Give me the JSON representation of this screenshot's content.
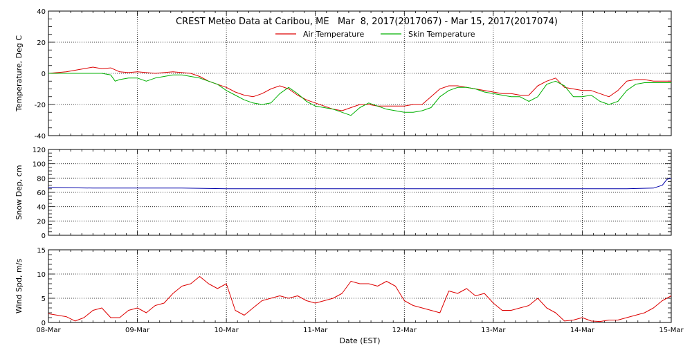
{
  "chart_data": [
    {
      "type": "line",
      "title": "CREST Meteo Data at Caribou, ME   Mar  8, 2017(2017067) - Mar 15, 2017(2017074)",
      "xlabel": "",
      "ylabel": "Temperature, Deg C",
      "xlim": [
        0,
        7
      ],
      "ylim": [
        -40,
        40
      ],
      "yticks": [
        -40,
        -20,
        0,
        20,
        40
      ],
      "grid": true,
      "legend": "top-center",
      "series": [
        {
          "name": "Air Temperature",
          "color": "#dd0000",
          "x": [
            0,
            0.1,
            0.2,
            0.3,
            0.4,
            0.5,
            0.55,
            0.6,
            0.7,
            0.8,
            0.9,
            1.0,
            1.1,
            1.2,
            1.3,
            1.4,
            1.5,
            1.6,
            1.7,
            1.8,
            1.9,
            2.0,
            2.1,
            2.2,
            2.3,
            2.4,
            2.5,
            2.6,
            2.7,
            2.8,
            2.9,
            3.0,
            3.1,
            3.2,
            3.3,
            3.4,
            3.5,
            3.6,
            3.7,
            3.8,
            3.9,
            4.0,
            4.1,
            4.2,
            4.3,
            4.4,
            4.5,
            4.6,
            4.7,
            4.8,
            4.9,
            5.0,
            5.1,
            5.2,
            5.3,
            5.4,
            5.5,
            5.6,
            5.7,
            5.8,
            5.9,
            6.0,
            6.1,
            6.2,
            6.3,
            6.4,
            6.5,
            6.6,
            6.7,
            6.8,
            6.9,
            7.0
          ],
          "y": [
            0,
            0.5,
            1,
            2,
            3,
            4,
            3.5,
            3,
            3.5,
            1,
            0.5,
            1,
            0.5,
            0,
            0.5,
            1,
            0.5,
            0,
            -2,
            -5,
            -7,
            -9,
            -12,
            -14,
            -15,
            -13,
            -10,
            -8,
            -10,
            -14,
            -17,
            -19,
            -21,
            -23,
            -24,
            -22,
            -20,
            -20,
            -21,
            -21,
            -21,
            -21,
            -20,
            -20,
            -15,
            -10,
            -8,
            -8,
            -9,
            -10,
            -11,
            -12,
            -13,
            -13,
            -14,
            -14,
            -8,
            -5,
            -3,
            -9,
            -10,
            -11,
            -11,
            -13,
            -15,
            -11,
            -5,
            -4,
            -4,
            -5,
            -5,
            -5
          ]
        },
        {
          "name": "Skin Temperature",
          "color": "#00b000",
          "x": [
            0,
            0.2,
            0.4,
            0.6,
            0.7,
            0.75,
            0.8,
            0.9,
            1.0,
            1.1,
            1.2,
            1.3,
            1.4,
            1.5,
            1.6,
            1.7,
            1.8,
            1.9,
            2.0,
            2.1,
            2.2,
            2.3,
            2.4,
            2.5,
            2.6,
            2.7,
            2.8,
            2.9,
            3.0,
            3.1,
            3.2,
            3.3,
            3.4,
            3.5,
            3.6,
            3.7,
            3.8,
            3.9,
            4.0,
            4.1,
            4.2,
            4.3,
            4.4,
            4.5,
            4.6,
            4.7,
            4.8,
            4.9,
            5.0,
            5.1,
            5.2,
            5.3,
            5.4,
            5.5,
            5.6,
            5.7,
            5.8,
            5.9,
            6.0,
            6.1,
            6.2,
            6.3,
            6.4,
            6.5,
            6.6,
            6.7,
            6.8,
            6.9,
            7.0
          ],
          "y": [
            0,
            0,
            0,
            0,
            -1,
            -5,
            -4,
            -3,
            -3,
            -5,
            -3,
            -2,
            -1,
            -1,
            -2,
            -3,
            -5,
            -7,
            -11,
            -14,
            -17,
            -19,
            -20,
            -19,
            -13,
            -9,
            -13,
            -18,
            -21,
            -22,
            -23,
            -25,
            -27,
            -22,
            -19,
            -21,
            -23,
            -24,
            -25,
            -25,
            -24,
            -22,
            -15,
            -11,
            -9,
            -9,
            -10,
            -12,
            -13,
            -14,
            -15,
            -15,
            -18,
            -15,
            -7,
            -5,
            -8,
            -15,
            -15,
            -14,
            -18,
            -20,
            -18,
            -11,
            -7,
            -6,
            -6,
            -6,
            -6
          ]
        }
      ]
    },
    {
      "type": "line",
      "xlabel": "",
      "ylabel": "Snow Dep, cm",
      "xlim": [
        0,
        7
      ],
      "ylim": [
        0,
        120
      ],
      "yticks": [
        0,
        20,
        40,
        60,
        80,
        100,
        120
      ],
      "grid": true,
      "series": [
        {
          "color": "#0000aa",
          "x": [
            0,
            0.5,
            1,
            1.5,
            2,
            2.5,
            3,
            3.5,
            4,
            4.5,
            5,
            5.5,
            6,
            6.5,
            6.8,
            6.9,
            6.95,
            7.0
          ],
          "y": [
            67,
            66,
            66,
            66,
            65,
            65,
            65,
            65,
            65,
            65,
            65,
            65,
            65,
            65,
            66,
            70,
            78,
            80
          ]
        }
      ]
    },
    {
      "type": "line",
      "xlabel": "Date (EST)",
      "ylabel": "Wind Spd, m/s",
      "xlim": [
        0,
        7
      ],
      "ylim": [
        0,
        15
      ],
      "yticks": [
        0,
        5,
        10,
        15
      ],
      "xtick_positions": [
        0,
        1,
        2,
        3,
        4,
        5,
        6,
        7
      ],
      "xticks": [
        "08-Mar",
        "09-Mar",
        "10-Mar",
        "11-Mar",
        "12-Mar",
        "13-Mar",
        "14-Mar",
        "15-Mar"
      ],
      "grid": true,
      "series": [
        {
          "color": "#dd0000",
          "x": [
            0,
            0.1,
            0.2,
            0.3,
            0.4,
            0.5,
            0.6,
            0.7,
            0.8,
            0.9,
            1.0,
            1.1,
            1.2,
            1.3,
            1.4,
            1.5,
            1.6,
            1.7,
            1.8,
            1.9,
            2.0,
            2.1,
            2.2,
            2.3,
            2.4,
            2.5,
            2.6,
            2.7,
            2.8,
            2.9,
            3.0,
            3.1,
            3.2,
            3.3,
            3.4,
            3.5,
            3.6,
            3.7,
            3.8,
            3.9,
            4.0,
            4.1,
            4.2,
            4.3,
            4.4,
            4.5,
            4.6,
            4.7,
            4.8,
            4.9,
            5.0,
            5.1,
            5.2,
            5.3,
            5.4,
            5.5,
            5.6,
            5.7,
            5.8,
            5.9,
            6.0,
            6.1,
            6.2,
            6.3,
            6.4,
            6.5,
            6.6,
            6.7,
            6.8,
            6.9,
            7.0
          ],
          "y": [
            1.8,
            1.5,
            1.2,
            0.3,
            1.0,
            2.5,
            3.0,
            1.0,
            1.0,
            2.5,
            3.0,
            2.0,
            3.5,
            4.0,
            6.0,
            7.5,
            8.0,
            9.5,
            8.0,
            7.0,
            8.0,
            2.5,
            1.5,
            3.0,
            4.5,
            5.0,
            5.5,
            5.0,
            5.5,
            4.5,
            4.0,
            4.5,
            5.0,
            6.0,
            8.5,
            8.0,
            8.0,
            7.5,
            8.5,
            7.5,
            4.5,
            3.5,
            3.0,
            2.5,
            2.0,
            6.5,
            6.0,
            7.0,
            5.5,
            6.0,
            4.0,
            2.5,
            2.5,
            3.0,
            3.5,
            5.0,
            3.0,
            2.0,
            0.3,
            0.5,
            1.0,
            0.3,
            0.2,
            0.5,
            0.5,
            1.0,
            1.5,
            2.0,
            3.0,
            4.5,
            5.5
          ]
        }
      ]
    }
  ]
}
